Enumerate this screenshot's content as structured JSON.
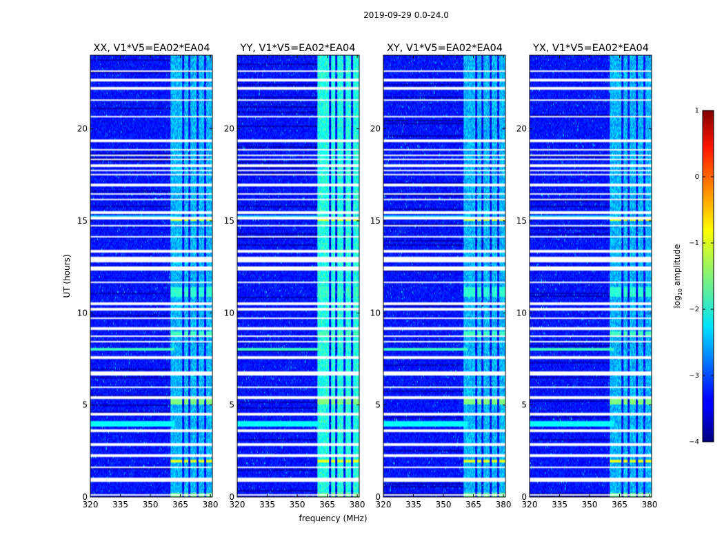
{
  "figure": {
    "suptitle": "2019-09-29 0.0-24.0",
    "ylabel": "UT (hours)",
    "xlabel": "frequency (MHz)"
  },
  "colorbar": {
    "label": "log10 amplitude",
    "label_main": "log",
    "label_sub": "10",
    "label_rest": " amplitude",
    "range": [
      -4,
      1
    ],
    "ticks": [
      -4,
      -3,
      -2,
      -1,
      0,
      1
    ],
    "tick_labels": [
      "−4",
      "−3",
      "−2",
      "−1",
      "0",
      "1"
    ],
    "colormap": "jet"
  },
  "chart_data": {
    "type": "heatmap",
    "title": "2019-09-29 0.0-24.0",
    "xlabel": "frequency (MHz)",
    "ylabel": "UT (hours)",
    "xlim": [
      320,
      381
    ],
    "ylim": [
      0,
      24
    ],
    "x_ticks": [
      320,
      335,
      350,
      365,
      380
    ],
    "y_ticks": [
      0,
      5,
      10,
      15,
      20
    ],
    "value_label": "log10 amplitude",
    "value_range": [
      -4,
      1
    ],
    "background_level": -3.3,
    "panels": [
      {
        "title": "XX, V1*V5=EA02*EA04",
        "pol": "XX",
        "show_ylabels": true
      },
      {
        "title": "YY, V1*V5=EA02*EA04",
        "pol": "YY",
        "show_ylabels": true
      },
      {
        "title": "XY, V1*V5=EA02*EA04",
        "pol": "XY",
        "show_ylabels": true
      },
      {
        "title": "YX, V1*V5=EA02*EA04",
        "pol": "YX",
        "show_ylabels": true
      }
    ],
    "flagged_intervals_hours": [
      [
        0.05,
        0.15
      ],
      [
        0.85,
        1.05
      ],
      [
        1.55,
        1.65
      ],
      [
        2.15,
        2.3
      ],
      [
        2.8,
        2.9
      ],
      [
        3.55,
        3.65
      ],
      [
        4.45,
        4.55
      ],
      [
        5.35,
        5.45
      ],
      [
        5.9,
        6.0
      ],
      [
        6.6,
        6.85
      ],
      [
        7.5,
        7.65
      ],
      [
        8.4,
        8.5
      ],
      [
        8.7,
        8.8
      ],
      [
        9.1,
        9.2
      ],
      [
        9.65,
        9.75
      ],
      [
        10.15,
        10.25
      ],
      [
        10.45,
        10.55
      ],
      [
        11.6,
        11.7
      ],
      [
        12.3,
        12.55
      ],
      [
        12.75,
        13.05
      ],
      [
        13.3,
        13.4
      ],
      [
        14.1,
        14.2
      ],
      [
        14.7,
        14.8
      ],
      [
        15.1,
        15.2
      ],
      [
        15.35,
        15.5
      ],
      [
        16.1,
        16.2
      ],
      [
        16.4,
        16.5
      ],
      [
        16.9,
        17.0
      ],
      [
        17.45,
        17.55
      ],
      [
        17.7,
        17.8
      ],
      [
        17.95,
        18.05
      ],
      [
        18.3,
        18.4
      ],
      [
        18.5,
        18.6
      ],
      [
        18.8,
        18.9
      ],
      [
        19.3,
        19.4
      ],
      [
        20.6,
        20.7
      ],
      [
        21.5,
        21.6
      ],
      [
        22.15,
        22.25
      ],
      [
        22.6,
        22.7
      ],
      [
        23.1,
        23.2
      ]
    ],
    "rfi_freq_ranges_mhz": [
      [
        360,
        366
      ],
      [
        367,
        369
      ],
      [
        370,
        373
      ],
      [
        374,
        377
      ],
      [
        378,
        381
      ]
    ],
    "rfi_level_by_pol": {
      "XX": -2.5,
      "YY": -2.0,
      "XY": -2.5,
      "YX": -2.5
    },
    "bright_rfi_events_hours": [
      {
        "t": [
          0.0,
          0.2
        ],
        "level": -1.6
      },
      {
        "t": [
          1.85,
          2.05
        ],
        "level": -1.0
      },
      {
        "t": [
          5.0,
          5.3
        ],
        "level": -1.5
      },
      {
        "t": [
          8.75,
          9.0
        ],
        "level": -1.8
      },
      {
        "t": [
          10.9,
          11.4
        ],
        "level": -1.9
      },
      {
        "t": [
          15.0,
          15.2
        ],
        "level": -1.0
      }
    ],
    "broadband_rows_hours": [
      {
        "t": [
          3.8,
          4.1
        ],
        "level": -2.1
      },
      {
        "t": [
          7.95,
          8.1
        ],
        "level": -1.8
      },
      {
        "t": [
          15.15,
          15.3
        ],
        "level": -2.3
      }
    ]
  }
}
